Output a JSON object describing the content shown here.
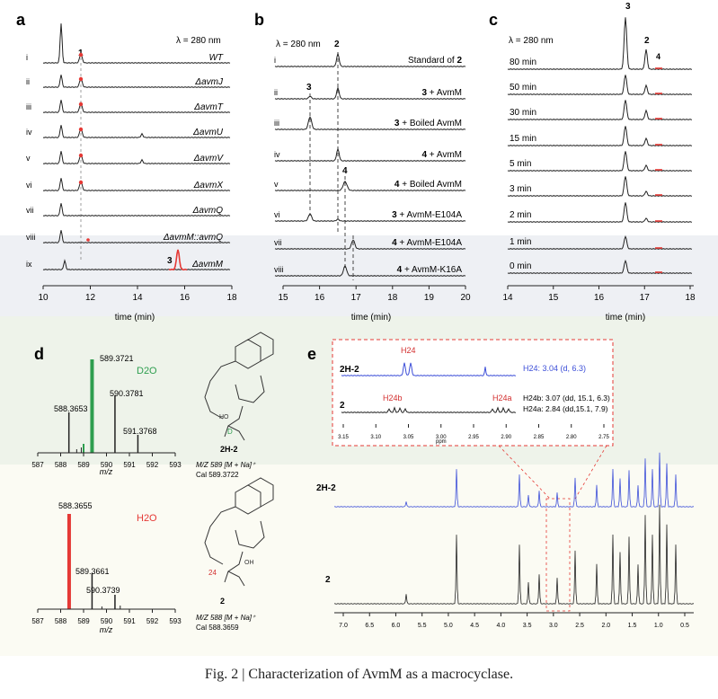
{
  "colors": {
    "trace": "#222222",
    "red": "#e53935",
    "green": "#2e9e4f",
    "blue": "#3d4fd8",
    "accent_red": "#d32f2f"
  },
  "panel_a": {
    "label": "a",
    "wavelength": "λ = 280 nm",
    "peak1_label": "1",
    "peak3_label": "3",
    "rows": [
      {
        "roman": "i",
        "label": "WT"
      },
      {
        "roman": "ii",
        "label": "ΔavmJ"
      },
      {
        "roman": "iii",
        "label": "ΔavmT"
      },
      {
        "roman": "iv",
        "label": "ΔavmU"
      },
      {
        "roman": "v",
        "label": "ΔavmV"
      },
      {
        "roman": "vi",
        "label": "ΔavmX"
      },
      {
        "roman": "vii",
        "label": "ΔavmQ"
      },
      {
        "roman": "viii",
        "label": "ΔavmM::avmQ"
      },
      {
        "roman": "ix",
        "label": "ΔavmM"
      }
    ],
    "ticks": [
      "10",
      "12",
      "14",
      "16",
      "18"
    ],
    "xlabel": "time (min)"
  },
  "panel_b": {
    "label": "b",
    "wavelength": "λ = 280 nm",
    "peak2_label": "2",
    "peak3_label": "3",
    "peak4_label": "4",
    "rows": [
      {
        "roman": "i",
        "pre": "Standard of",
        "bold": "2",
        "post": ""
      },
      {
        "roman": "ii",
        "pre": "",
        "bold": "3",
        "post": " + AvmM"
      },
      {
        "roman": "iii",
        "pre": "",
        "bold": "3",
        "post": " + Boiled AvmM"
      },
      {
        "roman": "iv",
        "pre": "",
        "bold": "4",
        "post": " + AvmM"
      },
      {
        "roman": "v",
        "pre": "",
        "bold": "4",
        "post": " + Boiled AvmM"
      },
      {
        "roman": "vi",
        "pre": "",
        "bold": "3",
        "post": " + AvmM-E104A"
      },
      {
        "roman": "vii",
        "pre": "",
        "bold": "4",
        "post": " + AvmM-E104A"
      },
      {
        "roman": "viii",
        "pre": "",
        "bold": "4",
        "post": " + AvmM-K16A"
      }
    ],
    "ticks": [
      "15",
      "16",
      "17",
      "18",
      "19",
      "20"
    ],
    "xlabel": "time (min)"
  },
  "panel_c": {
    "label": "c",
    "wavelength": "λ = 280 nm",
    "peak3_label": "3",
    "peak2_label": "2",
    "peak4_label": "4",
    "rows": [
      "80 min",
      "50 min",
      "30 min",
      "15 min",
      "5 min",
      "3 min",
      "2 min",
      "1 min",
      "0 min"
    ],
    "ticks": [
      "14",
      "15",
      "16",
      "17",
      "18"
    ],
    "xlabel": "time (min)"
  },
  "panel_d": {
    "label": "d",
    "top": {
      "solvent": "D2O",
      "peaks": [
        "589.3721",
        "590.3781",
        "588.3653",
        "591.3768"
      ],
      "ticks": [
        "587",
        "588",
        "589",
        "590",
        "591",
        "592",
        "593"
      ],
      "xlabel": "m/z",
      "struct_label": "2H-2",
      "mz_line": "M/Z 589 [M + Na]⁺",
      "cal_line": "Cal 589.3722",
      "d_mark": "D"
    },
    "bottom": {
      "solvent": "H2O",
      "peaks": [
        "588.3655",
        "589.3661",
        "590.3739"
      ],
      "ticks": [
        "587",
        "588",
        "589",
        "590",
        "591",
        "592",
        "593"
      ],
      "xlabel": "m/z",
      "struct_label": "2",
      "mz_line": "M/Z 588 [M + Na]⁺",
      "cal_line": "Cal 588.3659",
      "c24_mark": "24"
    }
  },
  "panel_e": {
    "label": "e",
    "inset": {
      "h24": "H24",
      "h24b": "H24b",
      "h24a": "H24a",
      "deut_label": "2H-2",
      "plain_label": "2",
      "h24_note": "H24: 3.04 (d, 6.3)",
      "h24b_note": "H24b: 3.07 (dd, 15.1, 6.3)",
      "h24a_note": "H24a: 2.84 (dd,15.1, 7.9)",
      "ticks": [
        "3.15",
        "3.10",
        "3.05",
        "3.00",
        "2.95",
        "2.90",
        "2.85",
        "2.80",
        "2.75"
      ],
      "unit": "ppm"
    },
    "main": {
      "deut_label": "2H-2",
      "plain_label": "2",
      "ticks": [
        "7.0",
        "6.5",
        "6.0",
        "5.5",
        "5.0",
        "4.5",
        "4.0",
        "3.5",
        "3.0",
        "2.5",
        "2.0",
        "1.5",
        "1.0",
        "0.5"
      ],
      "unit": "ppm"
    }
  },
  "caption": "Fig. 2 | Characterization of AvmM as a macrocyclase."
}
